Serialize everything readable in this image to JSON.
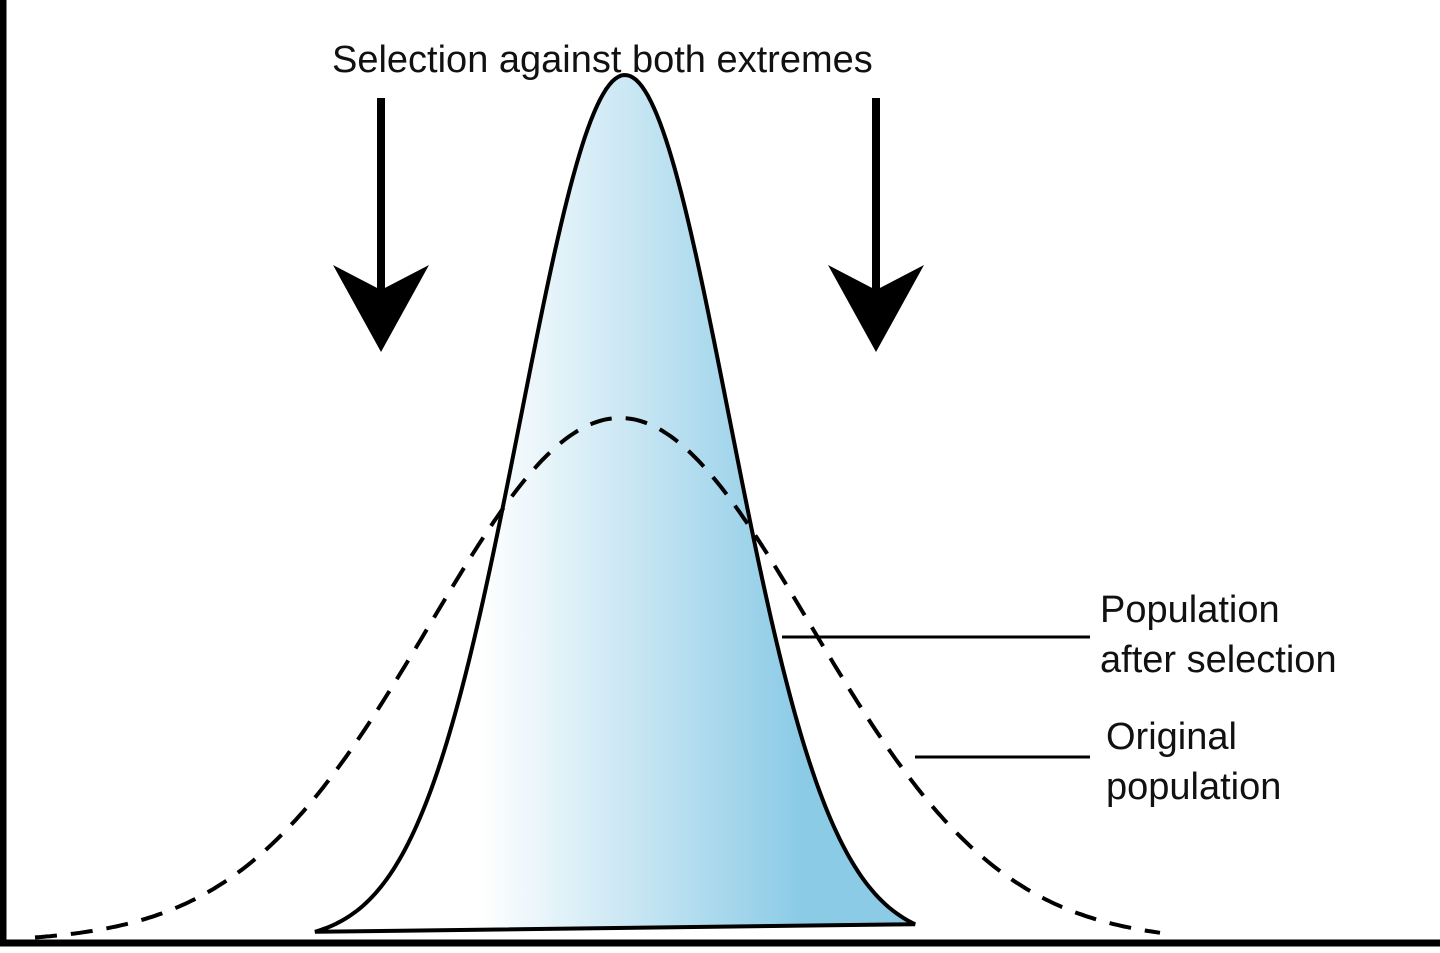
{
  "title": "Selection against both extremes",
  "labels": {
    "after": [
      "Population",
      "after selection"
    ],
    "original": [
      "Original",
      "population"
    ]
  },
  "colors": {
    "fill": "#8ccbe6",
    "line": "#000000"
  }
}
